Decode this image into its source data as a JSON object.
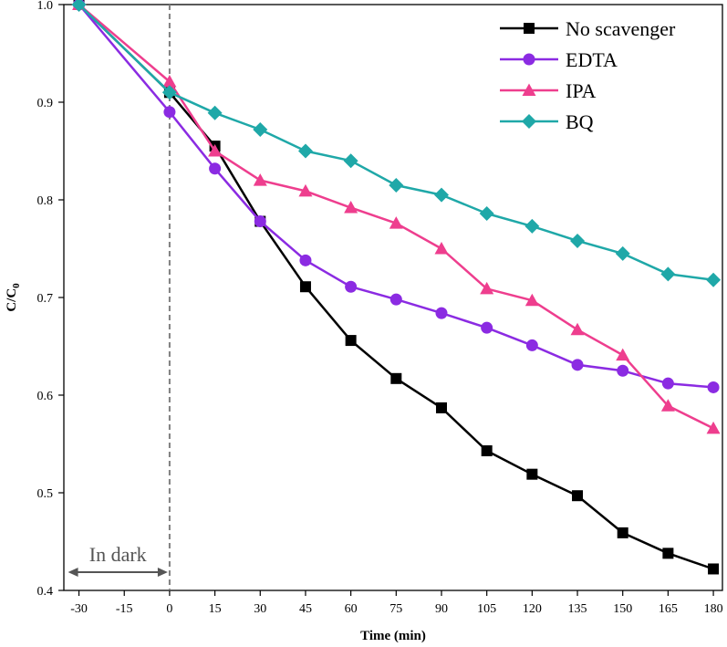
{
  "chart_data": {
    "type": "line",
    "title": "",
    "xlabel": "Time (min)",
    "ylabel_main": "C/C",
    "ylabel_sub": "0",
    "x": [
      -30,
      0,
      15,
      30,
      45,
      60,
      75,
      90,
      105,
      120,
      135,
      150,
      165,
      180
    ],
    "xticks": [
      -30,
      -15,
      0,
      15,
      30,
      45,
      60,
      75,
      90,
      105,
      120,
      135,
      150,
      165,
      180
    ],
    "yticks": [
      0.4,
      0.5,
      0.6,
      0.7,
      0.8,
      0.9,
      1.0
    ],
    "xlim": [
      -35,
      183
    ],
    "ylim": [
      0.4,
      1.0
    ],
    "legend_position": "top-right",
    "series": [
      {
        "name": "No scavenger",
        "color": "#000000",
        "marker": "square",
        "values": [
          1.0,
          0.91,
          0.855,
          0.778,
          0.711,
          0.656,
          0.617,
          0.587,
          0.543,
          0.519,
          0.497,
          0.459,
          0.438,
          0.422
        ]
      },
      {
        "name": "EDTA",
        "color": "#8B2BE2",
        "marker": "circle",
        "values": [
          1.0,
          0.89,
          0.832,
          0.778,
          0.738,
          0.711,
          0.698,
          0.684,
          0.669,
          0.651,
          0.631,
          0.625,
          0.612,
          0.608
        ]
      },
      {
        "name": "IPA",
        "color": "#EE3E8E",
        "marker": "triangle",
        "values": [
          1.0,
          0.921,
          0.85,
          0.82,
          0.809,
          0.792,
          0.776,
          0.75,
          0.709,
          0.697,
          0.667,
          0.641,
          0.589,
          0.566
        ]
      },
      {
        "name": "BQ",
        "color": "#1FA8A8",
        "marker": "diamond",
        "values": [
          1.0,
          0.91,
          0.889,
          0.872,
          0.85,
          0.84,
          0.815,
          0.805,
          0.786,
          0.773,
          0.758,
          0.745,
          0.724,
          0.718
        ]
      }
    ],
    "annotations": {
      "dark_label": "In dark",
      "divider_x": 0,
      "dark_range": [
        -30,
        0
      ]
    }
  },
  "colors": {
    "axis": "#000000",
    "divider": "#808080",
    "annotation": "#555555"
  }
}
